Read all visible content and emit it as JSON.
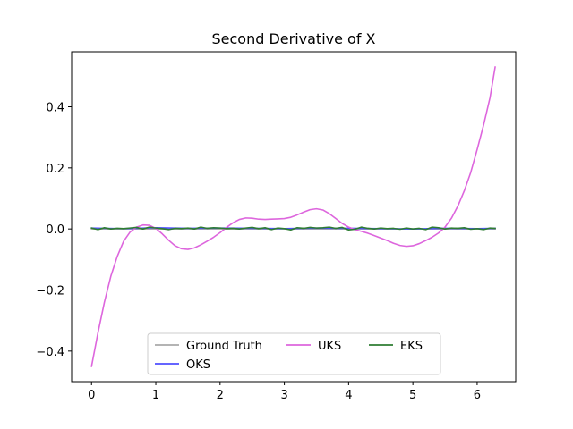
{
  "chart_data": {
    "type": "line",
    "title": "Second Derivative of X",
    "xlabel": "",
    "ylabel": "",
    "xlim": [
      -0.31,
      6.6
    ],
    "ylim": [
      -0.5,
      0.58
    ],
    "xticks": [
      0,
      1,
      2,
      3,
      4,
      5,
      6
    ],
    "yticks": [
      -0.4,
      -0.2,
      0.0,
      0.2,
      0.4
    ],
    "ytick_labels": [
      "−0.4",
      "−0.2",
      "0.0",
      "0.2",
      "0.4"
    ],
    "grid": false,
    "legend": {
      "placement": "lower center",
      "columns": 3
    },
    "series": [
      {
        "name": "Ground Truth",
        "color": "#aaaaaa",
        "x": [
          0,
          0.5,
          1.0,
          1.5,
          2.0,
          2.5,
          3.0,
          3.5,
          4.0,
          4.5,
          5.0,
          5.5,
          6.0,
          6.28
        ],
        "y": [
          0,
          0,
          0,
          0,
          0,
          0,
          0,
          0,
          0,
          0,
          0,
          0,
          0,
          0
        ]
      },
      {
        "name": "OKS",
        "color": "#4f4fff",
        "x": [
          0,
          0.5,
          1.0,
          1.5,
          2.0,
          2.5,
          3.0,
          3.5,
          4.0,
          4.5,
          5.0,
          5.5,
          6.0,
          6.28
        ],
        "y": [
          0.003,
          0.001,
          0.004,
          0.002,
          0.003,
          0.002,
          0.001,
          0.003,
          0.002,
          0.001,
          0.0,
          0.002,
          0.001,
          0.002
        ]
      },
      {
        "name": "UKS",
        "color": "#dd66dd",
        "x": [
          0,
          0.1,
          0.2,
          0.3,
          0.4,
          0.5,
          0.6,
          0.7,
          0.8,
          0.9,
          1.0,
          1.1,
          1.2,
          1.3,
          1.4,
          1.5,
          1.6,
          1.7,
          1.8,
          1.9,
          2.0,
          2.1,
          2.2,
          2.3,
          2.4,
          2.5,
          2.6,
          2.7,
          2.8,
          2.9,
          3.0,
          3.1,
          3.2,
          3.3,
          3.4,
          3.5,
          3.6,
          3.7,
          3.8,
          3.9,
          4.0,
          4.1,
          4.2,
          4.3,
          4.4,
          4.5,
          4.6,
          4.7,
          4.8,
          4.9,
          5.0,
          5.1,
          5.2,
          5.3,
          5.4,
          5.5,
          5.6,
          5.7,
          5.8,
          5.9,
          6.0,
          6.1,
          6.2,
          6.28
        ],
        "y": [
          -0.45,
          -0.34,
          -0.24,
          -0.155,
          -0.09,
          -0.04,
          -0.01,
          0.006,
          0.013,
          0.012,
          0.002,
          -0.016,
          -0.037,
          -0.055,
          -0.065,
          -0.067,
          -0.062,
          -0.052,
          -0.04,
          -0.027,
          -0.012,
          0.005,
          0.02,
          0.031,
          0.036,
          0.035,
          0.032,
          0.031,
          0.032,
          0.033,
          0.034,
          0.038,
          0.046,
          0.055,
          0.063,
          0.066,
          0.062,
          0.05,
          0.034,
          0.018,
          0.006,
          -0.002,
          -0.008,
          -0.014,
          -0.022,
          -0.03,
          -0.038,
          -0.047,
          -0.054,
          -0.057,
          -0.055,
          -0.048,
          -0.038,
          -0.027,
          -0.013,
          0.006,
          0.035,
          0.075,
          0.125,
          0.185,
          0.26,
          0.34,
          0.43,
          0.53
        ]
      },
      {
        "name": "EKS",
        "color": "#2e7d32",
        "x": [
          0,
          0.1,
          0.2,
          0.3,
          0.4,
          0.5,
          0.6,
          0.7,
          0.8,
          0.9,
          1.0,
          1.1,
          1.2,
          1.3,
          1.4,
          1.5,
          1.6,
          1.7,
          1.8,
          1.9,
          2.0,
          2.1,
          2.2,
          2.3,
          2.4,
          2.5,
          2.6,
          2.7,
          2.8,
          2.9,
          3.0,
          3.1,
          3.2,
          3.3,
          3.4,
          3.5,
          3.6,
          3.7,
          3.8,
          3.9,
          4.0,
          4.1,
          4.2,
          4.3,
          4.4,
          4.5,
          4.6,
          4.7,
          4.8,
          4.9,
          5.0,
          5.1,
          5.2,
          5.3,
          5.4,
          5.5,
          5.6,
          5.7,
          5.8,
          5.9,
          6.0,
          6.1,
          6.2,
          6.28
        ],
        "y": [
          0.003,
          -0.002,
          0.004,
          0.0,
          0.002,
          0.001,
          0.003,
          0.005,
          0.0,
          0.006,
          0.003,
          0.001,
          -0.002,
          0.002,
          0.001,
          0.003,
          0.0,
          0.006,
          0.002,
          0.004,
          0.003,
          0.001,
          0.002,
          0.0,
          0.003,
          0.005,
          0.001,
          0.004,
          -0.002,
          0.003,
          0.001,
          -0.003,
          0.004,
          0.002,
          0.005,
          0.003,
          0.004,
          0.006,
          0.002,
          0.005,
          -0.003,
          -0.001,
          0.006,
          0.002,
          0.0,
          0.003,
          0.001,
          0.002,
          -0.001,
          0.003,
          0.0,
          0.002,
          -0.002,
          0.006,
          0.004,
          0.0,
          0.003,
          0.002,
          0.004,
          -0.001,
          0.001,
          -0.002,
          0.003,
          0.002
        ]
      }
    ]
  }
}
